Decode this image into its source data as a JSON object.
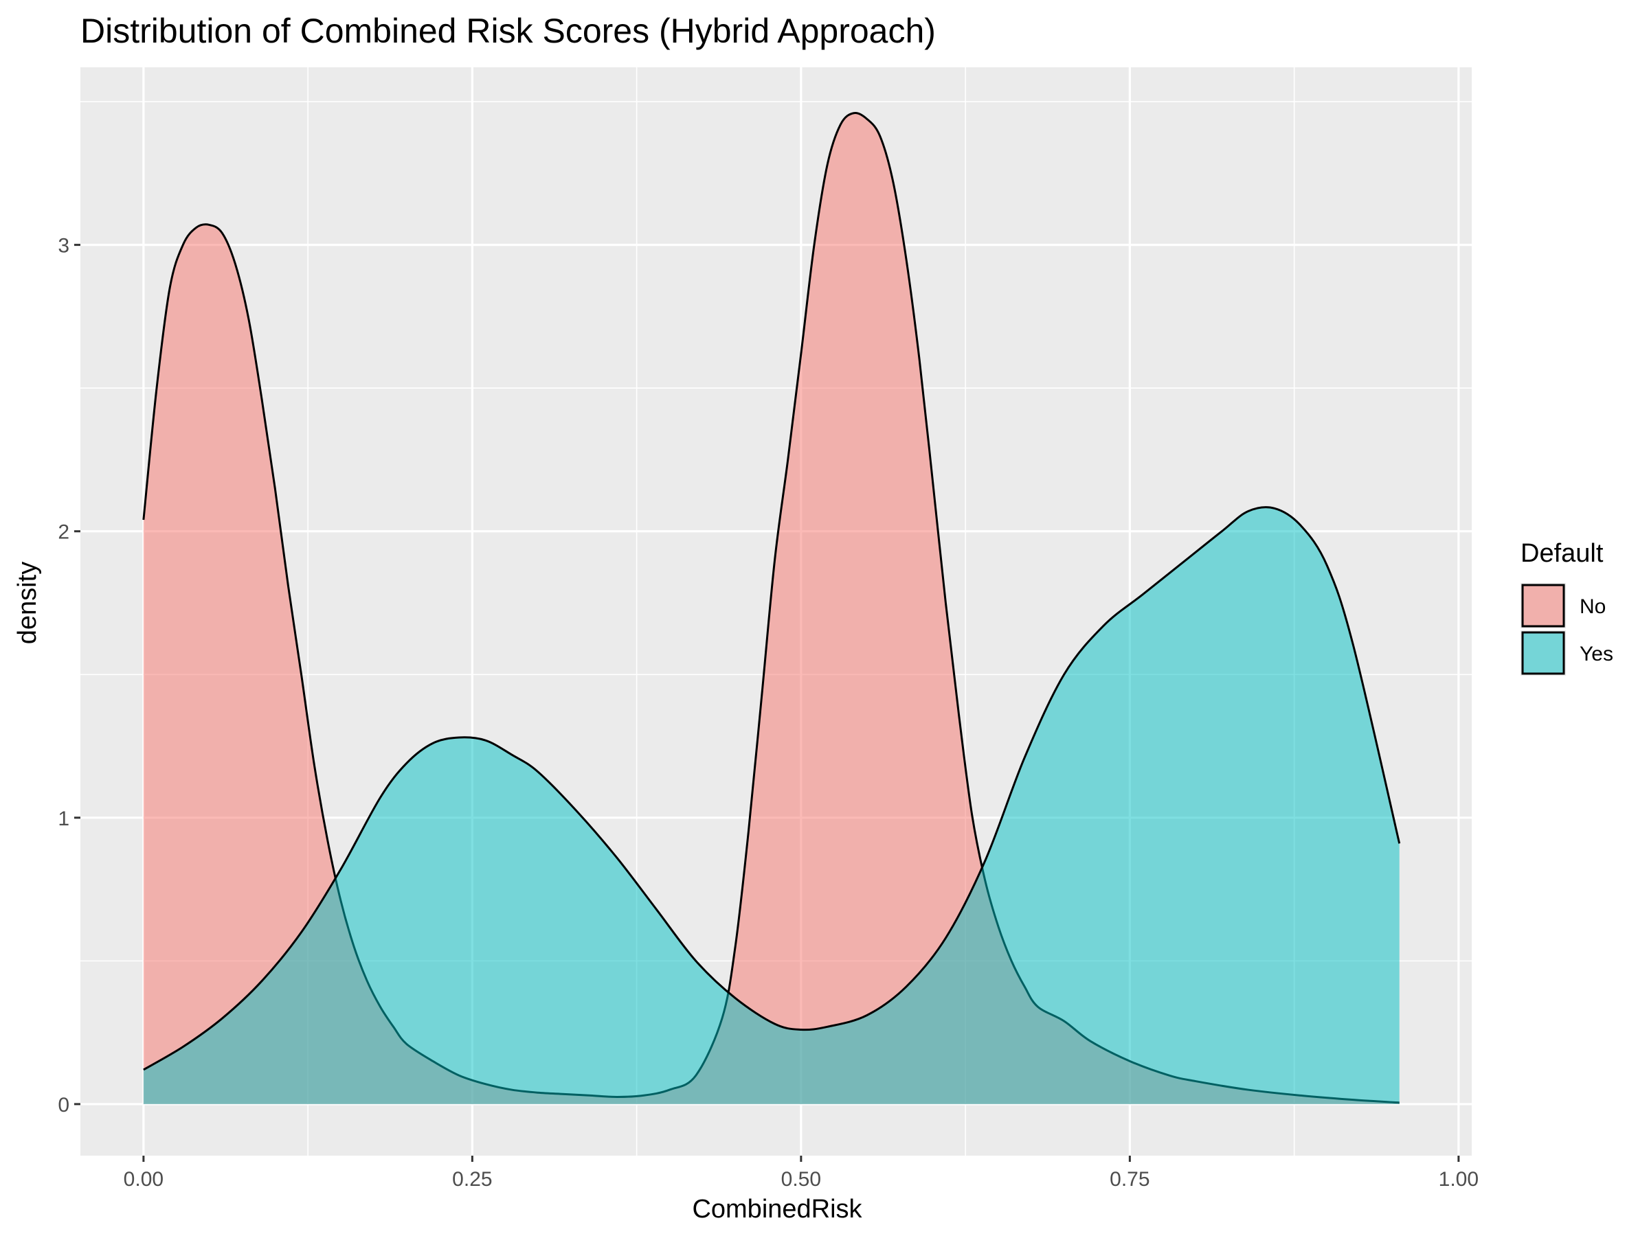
{
  "chart_data": {
    "type": "area",
    "subtype": "density",
    "title": "Distribution of Combined Risk Scores (Hybrid Approach)",
    "xlabel": "CombinedRisk",
    "ylabel": "density",
    "xlim": [
      -0.048,
      1.01
    ],
    "ylim": [
      -0.18,
      3.62
    ],
    "x_ticks": [
      0.0,
      0.25,
      0.5,
      0.75,
      1.0
    ],
    "x_tick_labels": [
      "0.00",
      "0.25",
      "0.50",
      "0.75",
      "1.00"
    ],
    "y_ticks": [
      0,
      1,
      2,
      3
    ],
    "y_tick_labels": [
      "0",
      "1",
      "2",
      "3"
    ],
    "grid": true,
    "legend": {
      "title": "Default",
      "position": "right"
    },
    "series": [
      {
        "name": "No",
        "color": "#F8766D",
        "x": [
          0.0,
          0.01,
          0.02,
          0.03,
          0.04,
          0.05,
          0.06,
          0.07,
          0.08,
          0.09,
          0.1,
          0.11,
          0.12,
          0.13,
          0.14,
          0.15,
          0.16,
          0.17,
          0.18,
          0.19,
          0.2,
          0.22,
          0.24,
          0.26,
          0.28,
          0.3,
          0.32,
          0.34,
          0.36,
          0.38,
          0.4,
          0.42,
          0.44,
          0.45,
          0.46,
          0.47,
          0.48,
          0.49,
          0.5,
          0.51,
          0.52,
          0.53,
          0.54,
          0.55,
          0.56,
          0.57,
          0.58,
          0.59,
          0.6,
          0.61,
          0.62,
          0.63,
          0.64,
          0.65,
          0.66,
          0.67,
          0.68,
          0.7,
          0.72,
          0.75,
          0.78,
          0.8,
          0.84,
          0.88,
          0.92,
          0.955
        ],
        "y": [
          2.04,
          2.5,
          2.85,
          3.0,
          3.06,
          3.07,
          3.04,
          2.93,
          2.74,
          2.46,
          2.15,
          1.81,
          1.5,
          1.18,
          0.92,
          0.71,
          0.55,
          0.43,
          0.34,
          0.27,
          0.21,
          0.15,
          0.1,
          0.07,
          0.05,
          0.04,
          0.035,
          0.03,
          0.025,
          0.03,
          0.05,
          0.1,
          0.3,
          0.55,
          0.95,
          1.42,
          1.9,
          2.25,
          2.62,
          3.0,
          3.28,
          3.42,
          3.46,
          3.44,
          3.38,
          3.22,
          2.95,
          2.6,
          2.18,
          1.75,
          1.36,
          1.01,
          0.78,
          0.62,
          0.5,
          0.41,
          0.34,
          0.29,
          0.22,
          0.15,
          0.1,
          0.08,
          0.05,
          0.03,
          0.015,
          0.005
        ]
      },
      {
        "name": "Yes",
        "color": "#00BFC4",
        "x": [
          0.0,
          0.03,
          0.06,
          0.09,
          0.12,
          0.15,
          0.18,
          0.2,
          0.22,
          0.24,
          0.26,
          0.28,
          0.3,
          0.33,
          0.36,
          0.39,
          0.42,
          0.45,
          0.48,
          0.5,
          0.52,
          0.55,
          0.58,
          0.61,
          0.64,
          0.67,
          0.7,
          0.73,
          0.76,
          0.79,
          0.82,
          0.84,
          0.86,
          0.88,
          0.9,
          0.92,
          0.955
        ],
        "y": [
          0.12,
          0.2,
          0.3,
          0.43,
          0.6,
          0.82,
          1.07,
          1.19,
          1.26,
          1.28,
          1.27,
          1.22,
          1.16,
          1.02,
          0.86,
          0.68,
          0.5,
          0.37,
          0.28,
          0.26,
          0.27,
          0.31,
          0.41,
          0.58,
          0.85,
          1.21,
          1.5,
          1.67,
          1.78,
          1.89,
          2.0,
          2.07,
          2.08,
          2.02,
          1.88,
          1.6,
          0.91
        ]
      }
    ]
  }
}
